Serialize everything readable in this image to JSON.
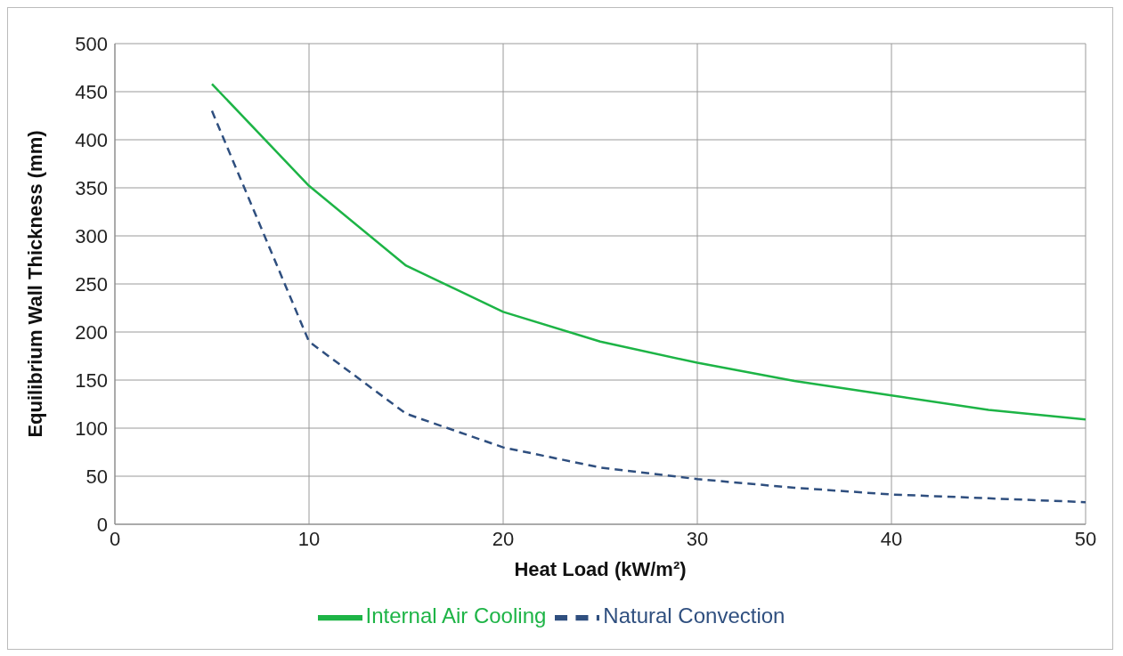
{
  "chart_data": {
    "type": "line",
    "xlabel": "Heat Load (kW/m²)",
    "ylabel": "Equilibrium Wall Thickness (mm)",
    "x": [
      5,
      10,
      15,
      20,
      25,
      30,
      35,
      40,
      45,
      50
    ],
    "series": [
      {
        "name": "Natural Convection",
        "color": "#2f4f7f",
        "line_style": "dashed",
        "values": [
          430,
          190,
          115,
          80,
          59,
          47,
          38,
          31,
          27,
          23
        ]
      },
      {
        "name": "Internal Air Cooling",
        "color": "#1db446",
        "line_style": "solid",
        "values": [
          458,
          352,
          269,
          221,
          190,
          168,
          149,
          134,
          119,
          109
        ]
      }
    ],
    "xlim": [
      0,
      50
    ],
    "xticks": [
      0,
      10,
      20,
      30,
      40,
      50
    ],
    "ylim": [
      0,
      500
    ],
    "yticks": [
      0,
      50,
      100,
      150,
      200,
      250,
      300,
      350,
      400,
      450,
      500
    ],
    "grid": true,
    "legend": "bottom",
    "marker": "none"
  }
}
